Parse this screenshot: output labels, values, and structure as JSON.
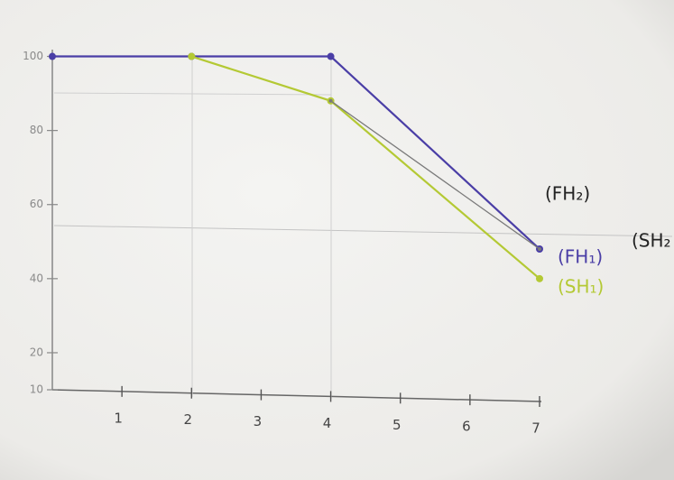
{
  "chart_data": {
    "type": "line",
    "xlim": [
      0,
      7
    ],
    "xticks": [
      1,
      2,
      3,
      4,
      5,
      6,
      7
    ],
    "ylim": [
      10,
      105
    ],
    "yticks": [
      10,
      20,
      40,
      60,
      80,
      100
    ],
    "series": [
      {
        "name": "(FH₁)",
        "color": "#4a3ea6",
        "x": [
          0,
          2,
          4,
          7
        ],
        "values": [
          100,
          100,
          100,
          48
        ]
      },
      {
        "name": "(SH₁)",
        "color": "#b4c934",
        "x": [
          2,
          4,
          7
        ],
        "values": [
          100,
          88,
          40
        ]
      },
      {
        "color": "#7a7a7a",
        "x": [
          4,
          7
        ],
        "values": [
          88,
          48
        ]
      }
    ],
    "annotations": [
      "(FH₂)",
      "(SH₂"
    ]
  }
}
